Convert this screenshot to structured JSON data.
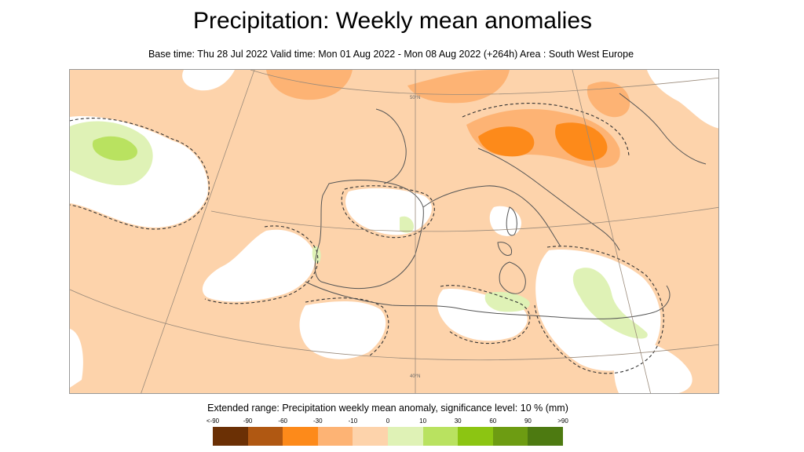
{
  "title": "Precipitation: Weekly mean anomalies",
  "subtitle": "Base time: Thu 28 Jul 2022 Valid time: Mon 01 Aug 2022 - Mon 08 Aug 2022 (+264h) Area : South West Europe",
  "legend": {
    "title": "Extended range: Precipitation weekly mean anomaly, significance level: 10 % (mm)",
    "tick_labels": [
      "<-90",
      "-90",
      "-60",
      "-30",
      "-10",
      "0",
      "10",
      "30",
      "60",
      "90",
      ">90"
    ],
    "colors": [
      "#6b3005",
      "#b05812",
      "#fd8a1a",
      "#fdb374",
      "#fdd3ab",
      "#dff2b6",
      "#b9e260",
      "#8cc512",
      "#6d9c12",
      "#4d7a11"
    ]
  },
  "map": {
    "gridline_labels": [
      "50°N",
      "40°N"
    ]
  }
}
